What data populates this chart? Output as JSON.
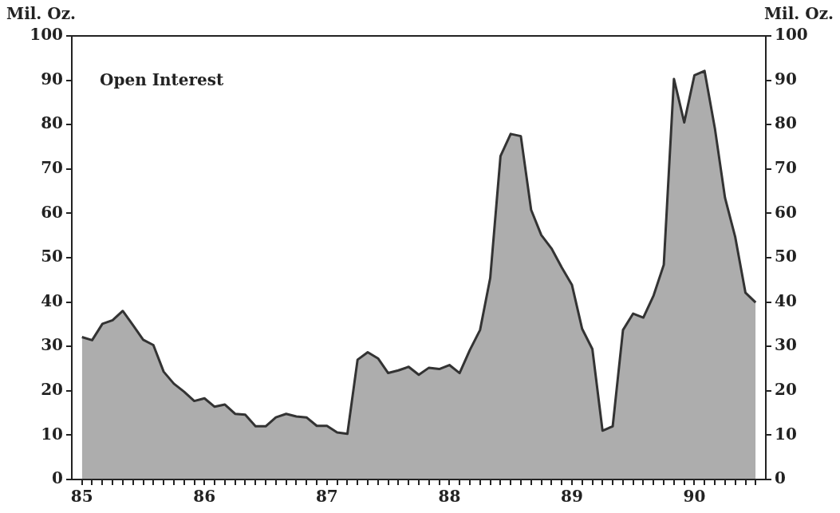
{
  "chart_data": {
    "type": "area",
    "title": "Open Interest",
    "ylabel": "Mil. Oz.",
    "y2label": "Mil. Oz.",
    "x": [
      85,
      85.083,
      85.167,
      85.25,
      85.333,
      85.417,
      85.5,
      85.583,
      85.667,
      85.75,
      85.833,
      85.917,
      86,
      86.083,
      86.167,
      86.25,
      86.333,
      86.417,
      86.5,
      86.583,
      86.667,
      86.75,
      86.833,
      86.917,
      87,
      87.083,
      87.167,
      87.25,
      87.333,
      87.417,
      87.5,
      87.583,
      87.667,
      87.75,
      87.833,
      87.917,
      88,
      88.083,
      88.167,
      88.25,
      88.333,
      88.417,
      88.5,
      88.583,
      88.667,
      88.75,
      88.833,
      88.917,
      89,
      89.083,
      89.167,
      89.25,
      89.333,
      89.417,
      89.5,
      89.583,
      89.667,
      89.75,
      89.833,
      89.917,
      90,
      90.083,
      90.167,
      90.25,
      90.333,
      90.417,
      90.5
    ],
    "series": [
      {
        "color": "#333333",
        "values": [
          32.1,
          31.4,
          35.1,
          35.9,
          38.0,
          34.8,
          31.5,
          30.3,
          24.3,
          21.6,
          19.8,
          17.7,
          18.3,
          16.4,
          16.9,
          14.8,
          14.6,
          12.0,
          12.0,
          14.0,
          14.8,
          14.2,
          14.0,
          12.1,
          12.1,
          10.6,
          10.3,
          27.0,
          28.7,
          27.3,
          24.0,
          24.6,
          25.4,
          23.6,
          25.2,
          24.9,
          25.8,
          24.0,
          29.2,
          33.7,
          45.4,
          72.9,
          77.9,
          77.4,
          60.8,
          55.1,
          52.1,
          47.8,
          43.9,
          34.0,
          29.4,
          11.0,
          12.0,
          33.7,
          37.4,
          36.5,
          41.5,
          48.4,
          90.3,
          80.5,
          91.1,
          92.1,
          79.2,
          63.5,
          54.7,
          42.1,
          39.9
        ]
      }
    ],
    "xlim": [
      84.917,
      90.583
    ],
    "xticks": [
      85,
      {
        "value": 85.083,
        "label": null
      },
      {
        "value": 85.167,
        "label": null
      },
      {
        "value": 85.25,
        "label": null
      },
      {
        "value": 85.333,
        "label": null
      },
      {
        "value": 85.417,
        "label": null
      },
      {
        "value": 85.5,
        "label": null
      },
      {
        "value": 85.583,
        "label": null
      },
      {
        "value": 85.667,
        "label": null
      },
      {
        "value": 85.75,
        "label": null
      },
      {
        "value": 85.833,
        "label": null
      },
      {
        "value": 85.917,
        "label": null
      },
      86,
      {
        "value": 86.083,
        "label": null
      },
      {
        "value": 86.167,
        "label": null
      },
      {
        "value": 86.25,
        "label": null
      },
      {
        "value": 86.333,
        "label": null
      },
      {
        "value": 86.417,
        "label": null
      },
      {
        "value": 86.5,
        "label": null
      },
      {
        "value": 86.583,
        "label": null
      },
      {
        "value": 86.667,
        "label": null
      },
      {
        "value": 86.75,
        "label": null
      },
      {
        "value": 86.833,
        "label": null
      },
      {
        "value": 86.917,
        "label": null
      },
      87,
      {
        "value": 87.083,
        "label": null
      },
      {
        "value": 87.167,
        "label": null
      },
      {
        "value": 87.25,
        "label": null
      },
      {
        "value": 87.333,
        "label": null
      },
      {
        "value": 87.417,
        "label": null
      },
      {
        "value": 87.5,
        "label": null
      },
      {
        "value": 87.583,
        "label": null
      },
      {
        "value": 87.667,
        "label": null
      },
      {
        "value": 87.75,
        "label": null
      },
      {
        "value": 87.833,
        "label": null
      },
      {
        "value": 87.917,
        "label": null
      },
      88,
      {
        "value": 88.083,
        "label": null
      },
      {
        "value": 88.167,
        "label": null
      },
      {
        "value": 88.25,
        "label": null
      },
      {
        "value": 88.333,
        "label": null
      },
      {
        "value": 88.417,
        "label": null
      },
      {
        "value": 88.5,
        "label": null
      },
      {
        "value": 88.583,
        "label": null
      },
      {
        "value": 88.667,
        "label": null
      },
      {
        "value": 88.75,
        "label": null
      },
      {
        "value": 88.833,
        "label": null
      },
      {
        "value": 88.917,
        "label": null
      },
      89,
      {
        "value": 89.083,
        "label": null
      },
      {
        "value": 89.167,
        "label": null
      },
      {
        "value": 89.25,
        "label": null
      },
      {
        "value": 89.333,
        "label": null
      },
      {
        "value": 89.417,
        "label": null
      },
      {
        "value": 89.5,
        "label": null
      },
      {
        "value": 89.583,
        "label": null
      },
      {
        "value": 89.667,
        "label": null
      },
      {
        "value": 89.75,
        "label": null
      },
      {
        "value": 89.833,
        "label": null
      },
      {
        "value": 89.917,
        "label": null
      },
      90,
      {
        "value": 90.083,
        "label": null
      },
      {
        "value": 90.167,
        "label": null
      },
      {
        "value": 90.25,
        "label": null
      },
      {
        "value": 90.333,
        "label": null
      },
      {
        "value": 90.417,
        "label": null
      },
      {
        "value": 90.5,
        "label": null
      }
    ],
    "ylim": [
      0,
      100
    ],
    "yticks": [
      0,
      10,
      20,
      30,
      40,
      50,
      60,
      70,
      80,
      90,
      100
    ],
    "y2lim": [
      0,
      100
    ],
    "y2ticks": [
      0,
      10,
      20,
      30,
      40,
      50,
      60,
      70,
      80,
      90,
      100
    ],
    "grid": false,
    "legend": false,
    "marker": "none",
    "line_style": "solid"
  }
}
